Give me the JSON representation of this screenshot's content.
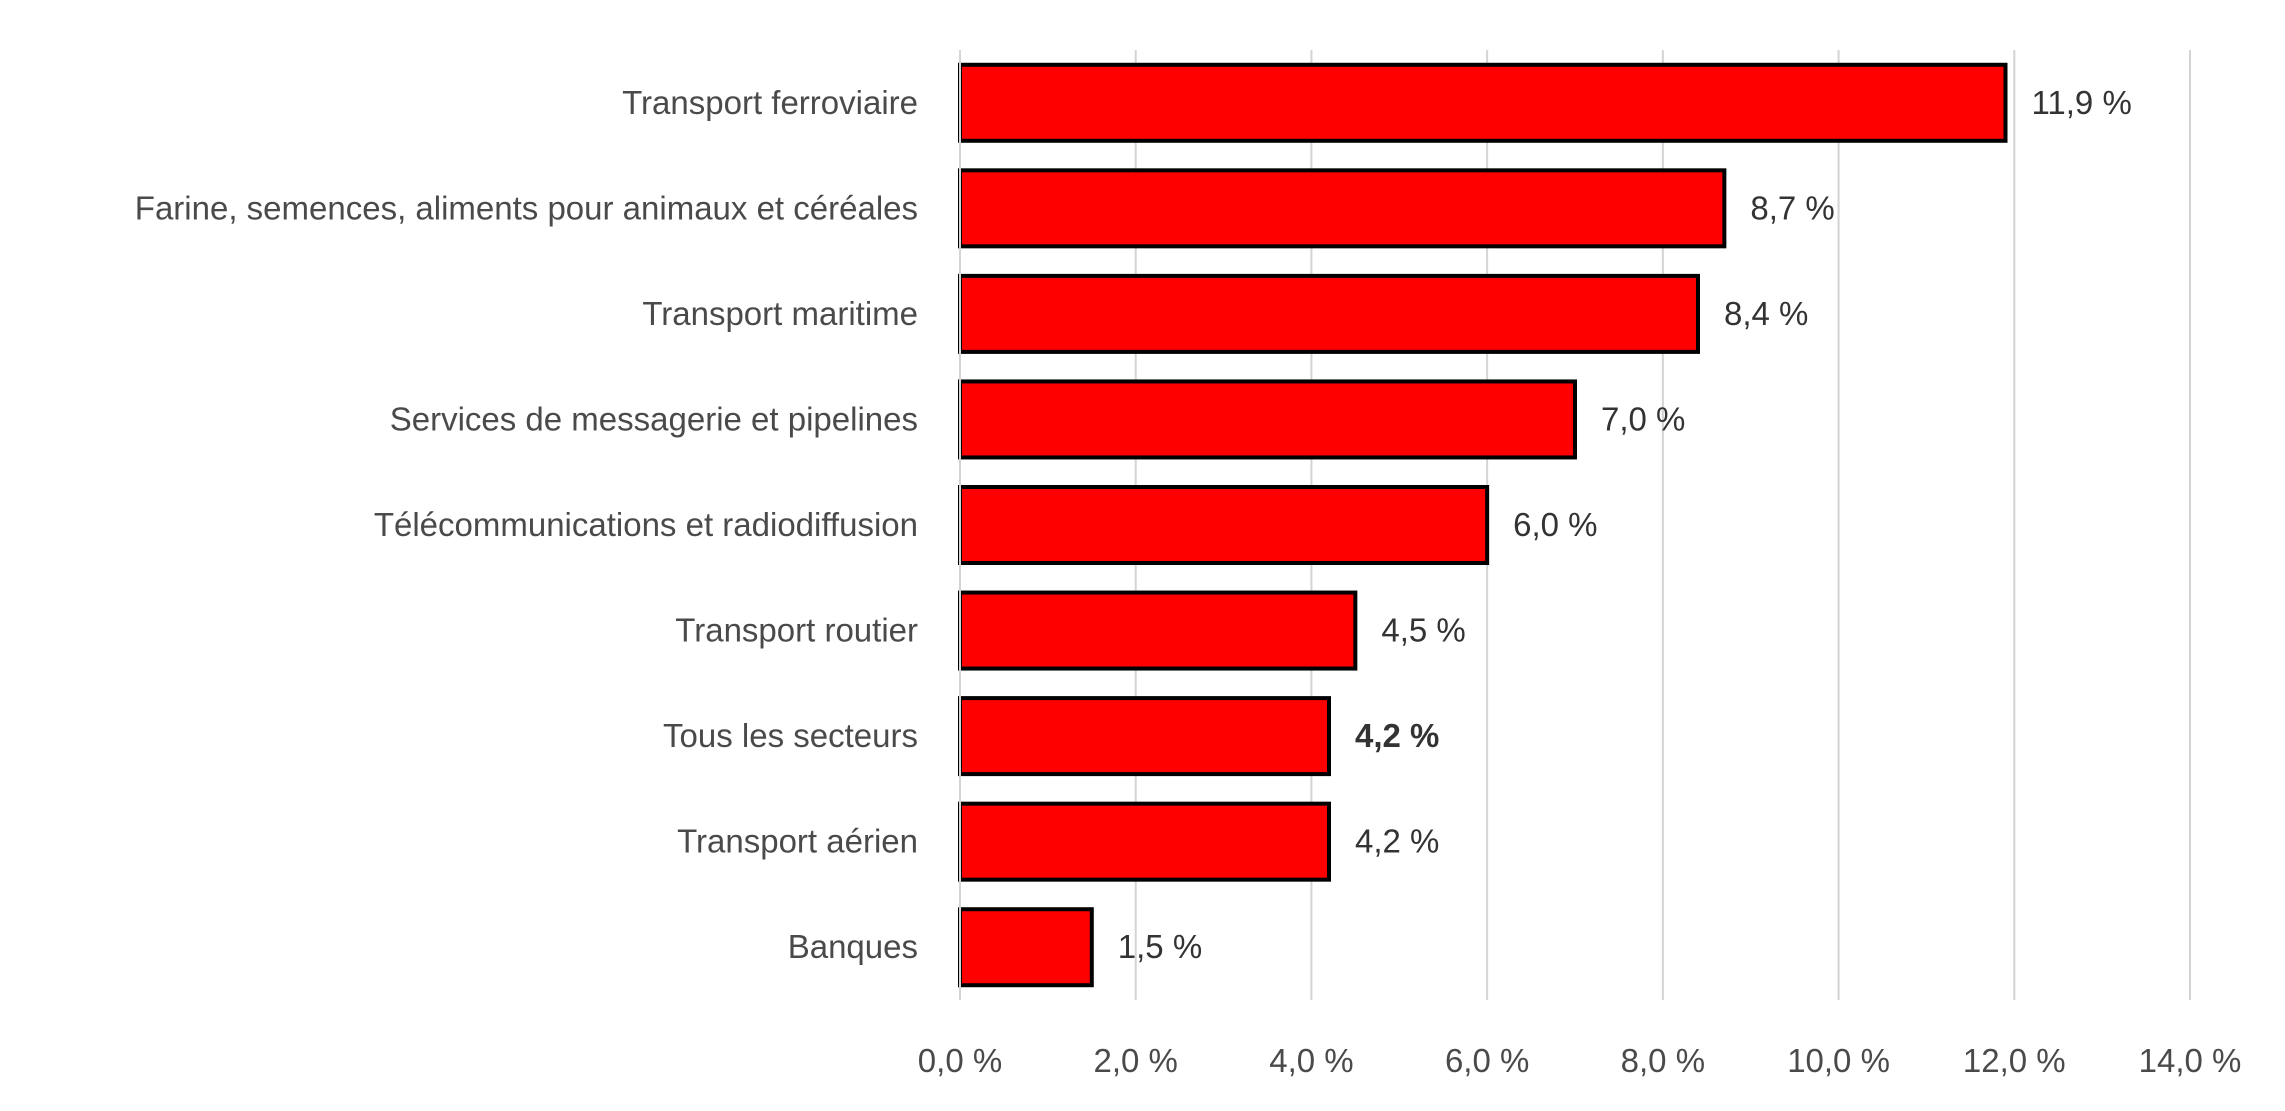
{
  "chart_data": {
    "type": "bar",
    "orientation": "horizontal",
    "title": "",
    "xlabel": "",
    "ylabel": "",
    "categories": [
      "Transport ferroviaire",
      "Farine, semences, aliments pour animaux et céréales",
      "Transport maritime",
      "Services de messagerie et pipelines",
      "Télécommunications et radiodiffusion",
      "Transport routier",
      "Tous les secteurs",
      "Transport aérien",
      "Banques"
    ],
    "values": [
      11.9,
      8.7,
      8.4,
      7.0,
      6.0,
      4.5,
      4.2,
      4.2,
      1.5
    ],
    "value_labels": [
      "11,9 %",
      "8,7 %",
      "8,4 %",
      "7,0 %",
      "6,0 %",
      "4,5 %",
      "4,2 %",
      "4,2 %",
      "1,5 %"
    ],
    "highlighted_category": "Tous les secteurs",
    "xlim": [
      0,
      14
    ],
    "x_ticks": [
      0,
      2,
      4,
      6,
      8,
      10,
      12,
      14
    ],
    "x_tick_labels": [
      "0,0 %",
      "2,0 %",
      "4,0 %",
      "6,0 %",
      "8,0 %",
      "10,0 %",
      "12,0 %",
      "14,0 %"
    ],
    "grid": true,
    "legend": "none",
    "colors": {
      "bar_fill": "#ff0000",
      "bar_outline": "#000000",
      "gridline": "#d4d4d4"
    }
  }
}
